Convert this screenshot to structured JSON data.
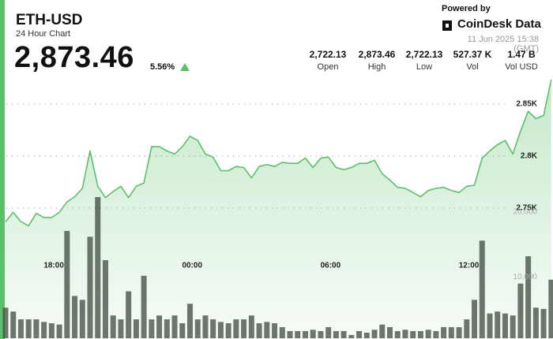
{
  "header": {
    "title": "ETH-USD",
    "subtitle": "24 Hour Chart",
    "price": "2,873.46",
    "change": "5.56%",
    "powered_by": "Powered by",
    "brand": "CoinDesk Data",
    "timestamp": "11 Jun 2025 15:38 (GMT)"
  },
  "stats": [
    {
      "value": "2,722.13",
      "label": "Open"
    },
    {
      "value": "2,873.46",
      "label": "High"
    },
    {
      "value": "2,722.13",
      "label": "Low"
    },
    {
      "value": "527.37 K",
      "label": "Vol"
    },
    {
      "value": "1.47 B",
      "label": "Vol USD"
    }
  ],
  "chart_data": {
    "type": "line",
    "categories": [
      null,
      null,
      null,
      null,
      null,
      null,
      null,
      "18:00",
      null,
      null,
      null,
      null,
      null,
      null,
      null,
      null,
      null,
      null,
      null,
      null,
      null,
      null,
      null,
      null,
      null,
      "00:00",
      null,
      null,
      null,
      null,
      null,
      null,
      null,
      null,
      null,
      null,
      null,
      null,
      null,
      null,
      null,
      null,
      null,
      "06:00",
      null,
      null,
      null,
      null,
      null,
      null,
      null,
      null,
      null,
      null,
      null,
      null,
      null,
      null,
      null,
      null,
      null,
      "12:00",
      null,
      null,
      null,
      null,
      null,
      null,
      null,
      null,
      null,
      null
    ],
    "series": [
      {
        "color": "#5cc06a",
        "values": [
          2737,
          2746,
          2737,
          2733,
          2745,
          2741,
          2741,
          2746,
          2756,
          2761,
          2769,
          2805,
          2771,
          2760,
          2766,
          2771,
          2760,
          2771,
          2774,
          2809,
          2809,
          2805,
          2802,
          2809,
          2819,
          2815,
          2802,
          2799,
          2786,
          2786,
          2790,
          2789,
          2779,
          2790,
          2792,
          2790,
          2794,
          2793,
          2793,
          2798,
          2789,
          2798,
          2799,
          2789,
          2787,
          2789,
          2793,
          2793,
          2796,
          2783,
          2777,
          2770,
          2769,
          2765,
          2761,
          2767,
          2769,
          2770,
          2767,
          2765,
          2771,
          2772,
          2798,
          2805,
          2811,
          2815,
          2802,
          2824,
          2843,
          2836,
          2839,
          2873.46
        ]
      },
      {
        "type": "bar",
        "axis": "y2",
        "color": "#3d4a3d",
        "values": [
          4700,
          4100,
          2900,
          2900,
          2900,
          2500,
          2300,
          2100,
          16500,
          6500,
          5900,
          15600,
          21700,
          12000,
          3500,
          2900,
          7200,
          2900,
          9600,
          2900,
          3500,
          2900,
          3500,
          2300,
          5300,
          2900,
          3500,
          2900,
          2500,
          2300,
          2900,
          2900,
          3500,
          2300,
          2500,
          2300,
          1700,
          1100,
          1100,
          1100,
          1300,
          1100,
          1700,
          1100,
          1100,
          500,
          1100,
          850,
          1300,
          2100,
          1700,
          1100,
          1300,
          1100,
          1100,
          1300,
          1100,
          1700,
          1700,
          1700,
          2900,
          5900,
          15000,
          3800,
          4100,
          3800,
          3500,
          8400,
          12600,
          4700,
          4500,
          9000
        ]
      }
    ],
    "ylim": [
      2625,
      2875
    ],
    "yticks": [
      {
        "value": 2750,
        "label": "2.75K"
      },
      {
        "value": 2800,
        "label": "2.8K"
      },
      {
        "value": 2850,
        "label": "2.85K"
      }
    ],
    "y2lim": [
      0,
      40000
    ],
    "y2ticks": [
      {
        "value": 10000,
        "label": "10,000"
      },
      {
        "value": 20000,
        "label": "20,000"
      }
    ],
    "grid": true
  }
}
